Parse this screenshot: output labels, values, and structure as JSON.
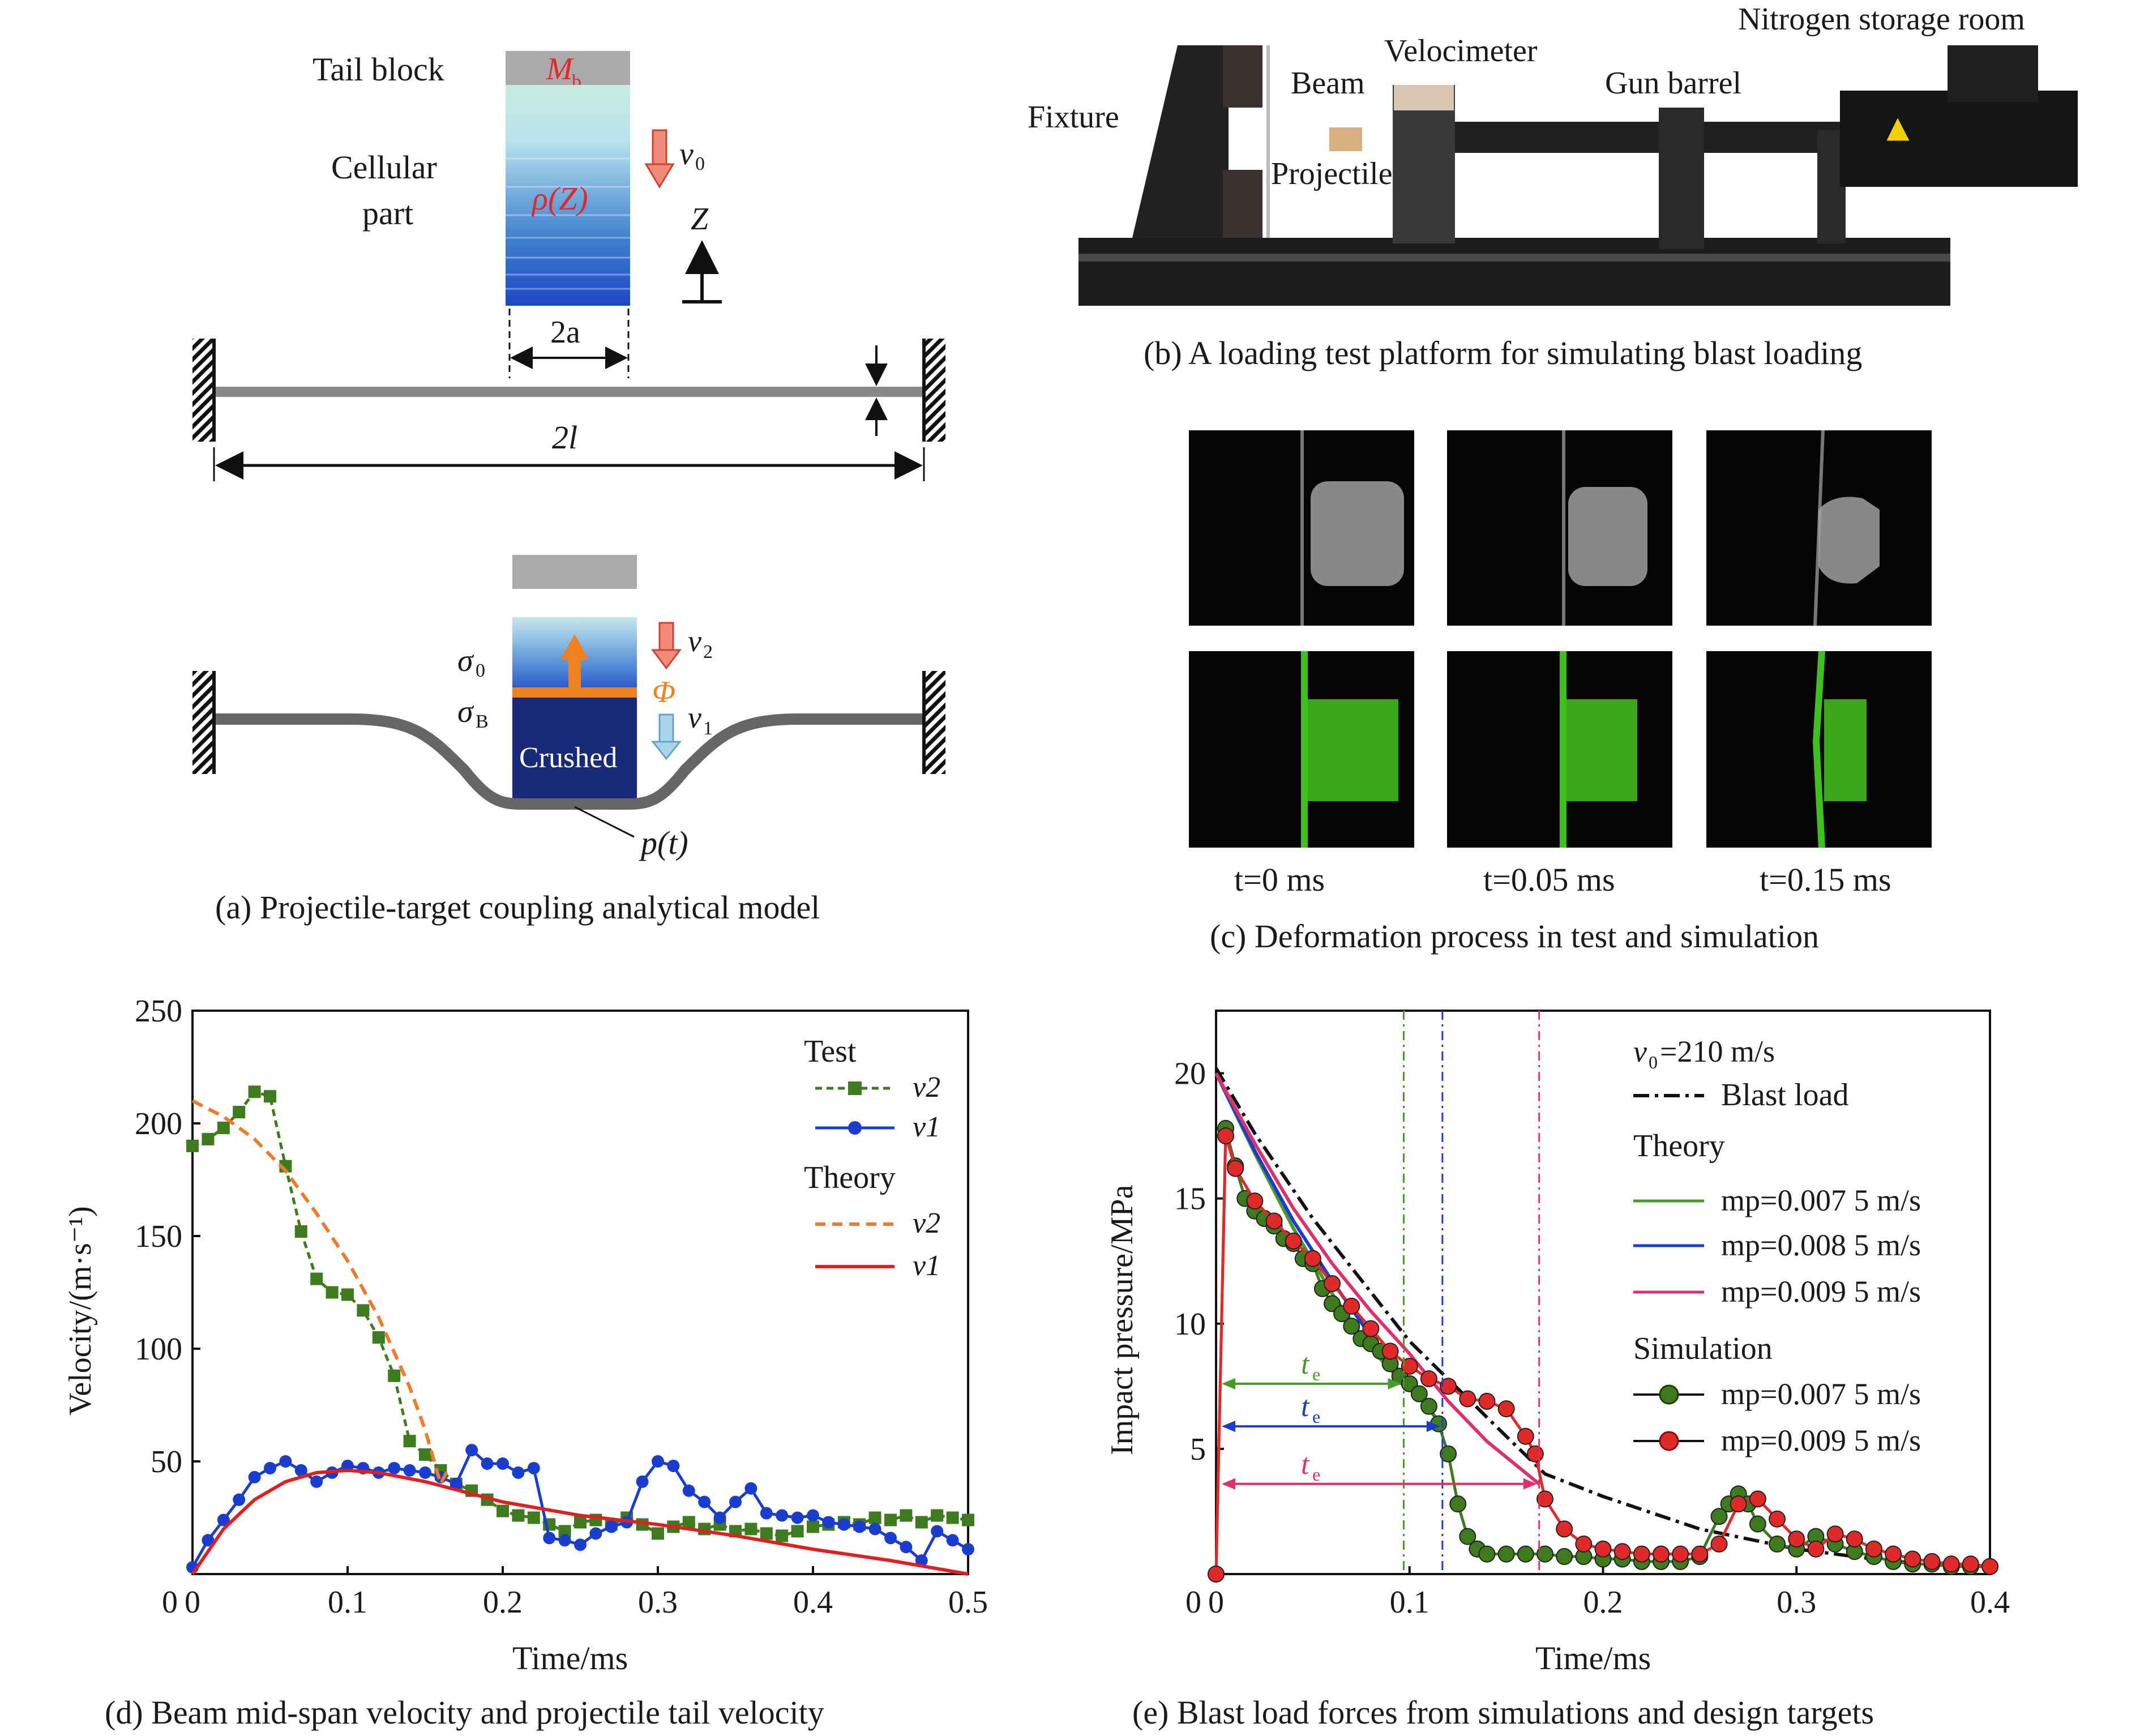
{
  "panel_a": {
    "caption": "(a) Projectile-target coupling analytical model",
    "tail_block_label": "Tail block",
    "tail_block_symbol": "M",
    "tail_block_sub": "b",
    "cellular_label_1": "Cellular",
    "cellular_label_2": "part",
    "density_label": "ρ(Z)",
    "v0_symbol": "v",
    "v0_sub": "0",
    "z_label": "Z",
    "width_label": "2a",
    "span_label": "2l",
    "sigma0": "σ",
    "sigma0_sub": "0",
    "sigmaB": "σ",
    "sigmaB_sub": "B",
    "phi_label": "Φ",
    "v2_symbol": "v",
    "v2_sub": "2",
    "v1_symbol": "v",
    "v1_sub": "1",
    "crushed_label": "Crushed",
    "pressure_label": "p(t)"
  },
  "panel_b": {
    "caption": "(b) A loading test platform for simulating blast loading",
    "labels": {
      "nitrogen": "Nitrogen storage room",
      "velocimeter": "Velocimeter",
      "beam": "Beam",
      "gun_barrel": "Gun barrel",
      "fixture": "Fixture",
      "projectile": "Projectile"
    }
  },
  "panel_c": {
    "caption": "(c) Deformation process in test and simulation",
    "time_labels": [
      "t=0 ms",
      "t=0.05 ms",
      "t=0.15 ms"
    ]
  },
  "chart_data": [
    {
      "type": "line",
      "caption": "(d) Beam mid-span velocity and projectile tail velocity",
      "xlabel": "Time/ms",
      "ylabel": "Velocity/(m·s⁻¹)",
      "xlim": [
        0,
        0.5
      ],
      "ylim": [
        0,
        250
      ],
      "xticks": [
        "0",
        "0.1",
        "0.2",
        "0.3",
        "0.4",
        "0.5"
      ],
      "yticks": [
        "50",
        "100",
        "150",
        "200",
        "250"
      ],
      "legend": {
        "placement": "top-right",
        "group1": "Test",
        "group2": "Theory"
      },
      "series": [
        {
          "name": "v2",
          "group": "Test",
          "style": "dashed-square",
          "color": "#3e7a1e",
          "x": [
            0.0,
            0.01,
            0.02,
            0.03,
            0.04,
            0.05,
            0.06,
            0.07,
            0.08,
            0.09,
            0.1,
            0.11,
            0.12,
            0.13,
            0.14,
            0.15,
            0.16,
            0.17,
            0.18,
            0.19,
            0.2,
            0.21,
            0.22,
            0.23,
            0.24,
            0.25,
            0.26,
            0.27,
            0.28,
            0.29,
            0.3,
            0.31,
            0.32,
            0.33,
            0.34,
            0.35,
            0.36,
            0.37,
            0.38,
            0.39,
            0.4,
            0.41,
            0.42,
            0.43,
            0.44,
            0.45,
            0.46,
            0.47,
            0.48,
            0.49,
            0.5
          ],
          "y": [
            190,
            193,
            198,
            205,
            214,
            212,
            181,
            152,
            131,
            125,
            124,
            117,
            105,
            88,
            59,
            53,
            46,
            40,
            37,
            33,
            28,
            26,
            25,
            22,
            19,
            23,
            24,
            22,
            25,
            22,
            18,
            21,
            23,
            20,
            22,
            19,
            20,
            18,
            17,
            19,
            21,
            22,
            23,
            22,
            25,
            24,
            26,
            23,
            26,
            25,
            24
          ]
        },
        {
          "name": "v1",
          "group": "Test",
          "style": "solid-circle",
          "color": "#1a3ccf",
          "x": [
            0.0,
            0.01,
            0.02,
            0.03,
            0.04,
            0.05,
            0.06,
            0.07,
            0.08,
            0.09,
            0.1,
            0.11,
            0.12,
            0.13,
            0.14,
            0.15,
            0.16,
            0.17,
            0.18,
            0.19,
            0.2,
            0.21,
            0.22,
            0.23,
            0.24,
            0.25,
            0.26,
            0.27,
            0.28,
            0.29,
            0.3,
            0.31,
            0.32,
            0.33,
            0.34,
            0.35,
            0.36,
            0.37,
            0.38,
            0.39,
            0.4,
            0.41,
            0.42,
            0.43,
            0.44,
            0.45,
            0.46,
            0.47,
            0.48,
            0.49,
            0.5
          ],
          "y": [
            3,
            15,
            24,
            33,
            43,
            47,
            50,
            46,
            41,
            45,
            48,
            47,
            45,
            47,
            46,
            45,
            43,
            40,
            55,
            49,
            49,
            45,
            47,
            16,
            15,
            13,
            18,
            21,
            23,
            41,
            50,
            48,
            37,
            32,
            25,
            32,
            38,
            27,
            26,
            25,
            26,
            23,
            22,
            21,
            20,
            16,
            12,
            6,
            19,
            15,
            11
          ]
        },
        {
          "name": "v2",
          "group": "Theory",
          "style": "dashed",
          "color": "#f07a2a",
          "x": [
            0.0,
            0.02,
            0.04,
            0.06,
            0.08,
            0.1,
            0.12,
            0.14,
            0.15,
            0.16,
            0.165
          ],
          "y": [
            210,
            203,
            193,
            179,
            160,
            139,
            114,
            83,
            64,
            40,
            47
          ]
        },
        {
          "name": "v1",
          "group": "Theory",
          "style": "solid",
          "color": "#e02020",
          "x": [
            0.0,
            0.02,
            0.04,
            0.06,
            0.08,
            0.1,
            0.12,
            0.15,
            0.2,
            0.25,
            0.3,
            0.35,
            0.4,
            0.45,
            0.5
          ],
          "y": [
            0,
            20,
            33,
            41,
            45,
            46,
            45,
            41,
            32,
            26,
            22,
            17,
            11,
            6,
            0
          ]
        }
      ]
    },
    {
      "type": "line",
      "caption": "(e) Blast load forces from simulations and design targets",
      "xlabel": "Time/ms",
      "ylabel": "Impact pressure/MPa",
      "xlim": [
        0,
        0.4
      ],
      "ylim": [
        0,
        22.5
      ],
      "xticks": [
        "0",
        "0.1",
        "0.2",
        "0.3",
        "0.4"
      ],
      "yticks": [
        "5",
        "10",
        "15",
        "20"
      ],
      "legend": {
        "placement": "top-right",
        "condition": "v",
        "condition_sub": "0",
        "condition_value": "=210 m/s",
        "blast_label": "Blast load",
        "group1": "Theory",
        "group2": "Simulation"
      },
      "te_label": "t",
      "te_sub": "e",
      "te_markers": [
        {
          "x": 0.097,
          "y": 7.6,
          "color": "#4a9a2a"
        },
        {
          "x": 0.117,
          "y": 5.9,
          "color": "#1a3ccf"
        },
        {
          "x": 0.167,
          "y": 3.6,
          "color": "#e0306a"
        }
      ],
      "series": [
        {
          "name": "Blast load",
          "style": "dash-dot",
          "color": "#111111",
          "x": [
            0.0,
            0.02,
            0.05,
            0.1,
            0.15,
            0.17,
            0.2,
            0.25,
            0.3,
            0.35,
            0.4
          ],
          "y": [
            20.2,
            17.6,
            14.2,
            9.3,
            5.5,
            4.0,
            3.1,
            1.8,
            1.0,
            0.5,
            0.3
          ]
        },
        {
          "name": "mp=0.007 5 m/s",
          "group": "Theory",
          "style": "solid",
          "color": "#4a9a2a",
          "x": [
            0.0,
            0.02,
            0.04,
            0.06,
            0.08,
            0.097
          ],
          "y": [
            20.0,
            16.8,
            13.8,
            11.2,
            9.0,
            7.6
          ]
        },
        {
          "name": "mp=0.008 5 m/s",
          "group": "Theory",
          "style": "solid",
          "color": "#1a3ccf",
          "x": [
            0.0,
            0.02,
            0.04,
            0.06,
            0.08,
            0.1,
            0.117
          ],
          "y": [
            20.0,
            16.9,
            14.1,
            11.7,
            9.5,
            7.6,
            5.9
          ]
        },
        {
          "name": "mp=0.009 5 m/s",
          "group": "Theory",
          "style": "solid",
          "color": "#e0306a",
          "x": [
            0.0,
            0.02,
            0.04,
            0.06,
            0.08,
            0.1,
            0.12,
            0.14,
            0.167
          ],
          "y": [
            20.0,
            17.2,
            14.6,
            12.4,
            10.5,
            8.8,
            6.9,
            5.3,
            3.6
          ]
        },
        {
          "name": "mp=0.007 5 m/s",
          "group": "Simulation",
          "style": "solid-circle",
          "color": "#3e7a1e",
          "x": [
            0.0,
            0.005,
            0.01,
            0.015,
            0.02,
            0.025,
            0.03,
            0.035,
            0.04,
            0.045,
            0.05,
            0.055,
            0.06,
            0.065,
            0.07,
            0.075,
            0.08,
            0.085,
            0.09,
            0.095,
            0.1,
            0.105,
            0.11,
            0.115,
            0.12,
            0.125,
            0.13,
            0.135,
            0.14,
            0.15,
            0.16,
            0.17,
            0.18,
            0.19,
            0.2,
            0.21,
            0.22,
            0.23,
            0.24,
            0.25,
            0.26,
            0.265,
            0.27,
            0.275,
            0.28,
            0.29,
            0.3,
            0.31,
            0.32,
            0.33,
            0.34,
            0.35,
            0.36,
            0.37,
            0.38,
            0.39,
            0.4
          ],
          "y": [
            0.0,
            17.8,
            16.3,
            15.0,
            14.5,
            14.2,
            13.9,
            13.4,
            13.2,
            12.6,
            12.4,
            11.4,
            10.8,
            10.4,
            9.9,
            9.4,
            9.2,
            8.9,
            8.4,
            7.9,
            7.6,
            7.2,
            6.7,
            6.0,
            4.8,
            2.8,
            1.5,
            1.0,
            0.8,
            0.8,
            0.8,
            0.8,
            0.7,
            0.7,
            0.6,
            0.6,
            0.5,
            0.5,
            0.5,
            0.7,
            2.3,
            2.8,
            3.2,
            2.8,
            2.0,
            1.2,
            1.0,
            1.5,
            1.2,
            0.9,
            0.7,
            0.5,
            0.4,
            0.4,
            0.3,
            0.3,
            0.3
          ]
        },
        {
          "name": "mp=0.009 5 m/s",
          "group": "Simulation",
          "style": "solid-circle",
          "color": "#e02a2a",
          "x": [
            0.0,
            0.005,
            0.01,
            0.02,
            0.03,
            0.04,
            0.05,
            0.06,
            0.07,
            0.08,
            0.09,
            0.1,
            0.11,
            0.12,
            0.13,
            0.14,
            0.15,
            0.16,
            0.165,
            0.17,
            0.18,
            0.19,
            0.2,
            0.21,
            0.22,
            0.23,
            0.24,
            0.25,
            0.26,
            0.27,
            0.28,
            0.29,
            0.3,
            0.31,
            0.32,
            0.33,
            0.34,
            0.35,
            0.36,
            0.37,
            0.38,
            0.39,
            0.4
          ],
          "y": [
            0.0,
            17.5,
            16.2,
            14.9,
            14.1,
            13.3,
            12.6,
            11.6,
            10.7,
            9.8,
            8.9,
            8.3,
            7.8,
            7.5,
            7.0,
            6.9,
            6.6,
            5.5,
            4.8,
            3.0,
            1.8,
            1.2,
            1.0,
            0.9,
            0.8,
            0.8,
            0.8,
            0.8,
            1.2,
            2.8,
            3.0,
            2.2,
            1.4,
            1.0,
            1.6,
            1.4,
            1.0,
            0.8,
            0.6,
            0.5,
            0.4,
            0.4,
            0.3
          ]
        }
      ]
    }
  ]
}
